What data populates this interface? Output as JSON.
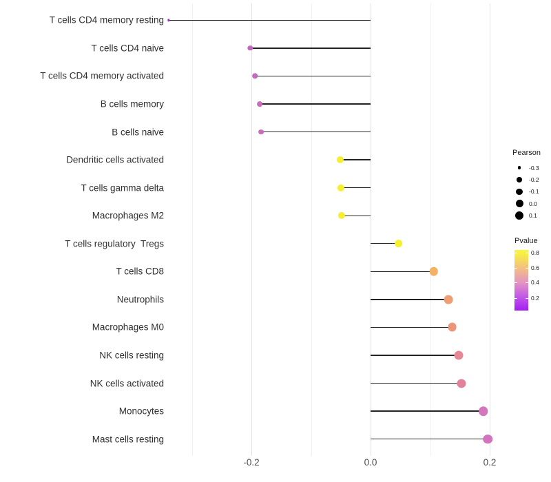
{
  "chart_data": {
    "type": "scatter",
    "variant": "horizontal-lollipop",
    "title": "",
    "xlabel": "",
    "ylabel": "",
    "categories": [
      "T cells CD4 memory resting",
      "T cells CD4 naive",
      "T cells CD4 memory activated",
      "B cells memory",
      "B cells naive",
      "Dendritic cells activated",
      "T cells gamma delta",
      "Macrophages M2",
      "T cells regulatory  Tregs",
      "T cells CD8",
      "Neutrophils",
      "Macrophages M0",
      "NK cells resting",
      "NK cells activated",
      "Monocytes",
      "Mast cells resting"
    ],
    "series": [
      {
        "name": "Pearson",
        "values": [
          -0.339,
          -0.202,
          -0.194,
          -0.186,
          -0.184,
          -0.051,
          -0.05,
          -0.049,
          0.047,
          0.106,
          0.131,
          0.137,
          0.148,
          0.153,
          0.189,
          0.197
        ],
        "point_colors": [
          "#9632D8",
          "#C666C0",
          "#C768BF",
          "#C96CBD",
          "#CA6DBC",
          "#F6EF30",
          "#F6EF30",
          "#F5EE33",
          "#F7F02C",
          "#F2B163",
          "#EF9E73",
          "#ED9579",
          "#E48897",
          "#E2829A",
          "#D476BC",
          "#D372BD"
        ]
      }
    ],
    "baseline": 0.0,
    "xlim": [
      -0.341,
      0.222
    ],
    "x_ticks": {
      "major_labels": [
        "-0.2",
        "0.0",
        "0.2"
      ],
      "major_values": [
        -0.2,
        0.0,
        0.2
      ],
      "minor_values": [
        -0.3,
        -0.1,
        0.1
      ]
    },
    "grid": "vertical, light gray, on white background",
    "legend_position": "right",
    "size_legend": {
      "title": "Pearson",
      "items": [
        {
          "label": "-0.3",
          "value": -0.3
        },
        {
          "label": "-0.2",
          "value": -0.2
        },
        {
          "label": "-0.1",
          "value": -0.1
        },
        {
          "label": "0.0",
          "value": 0.0
        },
        {
          "label": "0.1",
          "value": 0.1
        }
      ],
      "dot_color": "#000000"
    },
    "color_legend": {
      "title": "Pvalue",
      "tick_labels": [
        "0.8",
        "0.6",
        "0.4",
        "0.2"
      ],
      "tick_positions_pct": [
        4.6,
        29.3,
        53.6,
        79.8
      ],
      "gradient_stops": [
        {
          "pct": 0,
          "color": "#F9F43C"
        },
        {
          "pct": 5,
          "color": "#F8F140"
        },
        {
          "pct": 29,
          "color": "#F4C17E"
        },
        {
          "pct": 54,
          "color": "#E394C3"
        },
        {
          "pct": 80,
          "color": "#BE50EA"
        },
        {
          "pct": 100,
          "color": "#A21DF3"
        }
      ]
    },
    "colors": {
      "stem": "#222222",
      "grid_major": "#e3e3e3",
      "grid_minor": "#f0f0f0",
      "axis_text": "#4d4d4d",
      "category_text": "#303030"
    }
  }
}
